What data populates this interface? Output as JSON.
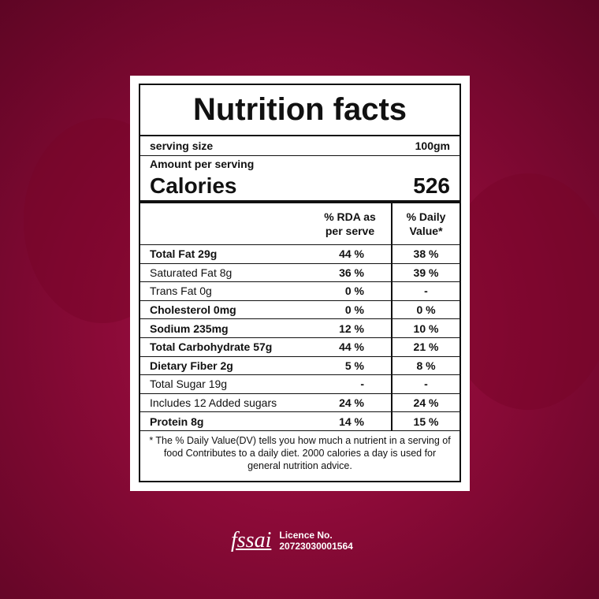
{
  "title": "Nutrition facts",
  "serving": {
    "label": "serving size",
    "value": "100gm"
  },
  "amount": "Amount per serving",
  "calories": {
    "label": "Calories",
    "value": "526"
  },
  "table": {
    "header": [
      "% RDA as per serve",
      "% Daily Value*"
    ],
    "rows": [
      [
        "Total Fat 29g",
        "44 %",
        "38 %"
      ],
      [
        "Saturated Fat 8g",
        "36 %",
        "39 %"
      ],
      [
        "Trans Fat 0g",
        "0 %",
        "-"
      ],
      [
        "Cholesterol 0mg",
        "0 %",
        "0 %"
      ],
      [
        "Sodium 235mg",
        "12 %",
        "10 %"
      ],
      [
        "Total Carbohydrate 57g",
        "44 %",
        "21 %"
      ],
      [
        "Dietary Fiber 2g",
        "5 %",
        "8 %"
      ],
      [
        "Total Sugar 19g",
        "-",
        "-"
      ],
      [
        "Includes 12 Added sugars",
        "24 %",
        "24 %"
      ],
      [
        "Protein 8g",
        "14 %",
        "15 %"
      ]
    ]
  },
  "footnote": "* The % Daily Value(DV) tells you how much a nutrient in a serving of food Contributes to a daily diet. 2000 calories a day is used for general nutrition advice.",
  "logo": {
    "brand": "fssai",
    "licence_label": "Licence No.",
    "licence_number": "20723030001564"
  }
}
